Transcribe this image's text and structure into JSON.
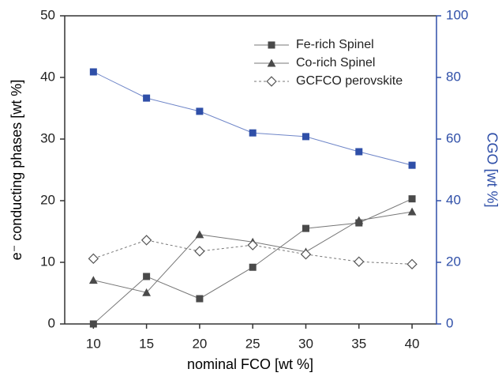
{
  "chart_data": {
    "type": "line",
    "x_label": "nominal FCO [wt %]",
    "y_label": "e⁻ conducting phases [wt %]",
    "y2_label": "CGO [wt %]",
    "y2_color": "#2f4fa8",
    "x": [
      10,
      15,
      20,
      25,
      30,
      35,
      40
    ],
    "xlim": [
      7.3,
      42.3
    ],
    "xticks": [
      10,
      15,
      20,
      25,
      30,
      35,
      40
    ],
    "ylim": [
      0,
      50
    ],
    "yticks": [
      0,
      10,
      20,
      30,
      40,
      50
    ],
    "y2lim": [
      0,
      100
    ],
    "y2ticks": [
      0,
      20,
      40,
      60,
      80,
      100
    ],
    "legend": "upper right",
    "series": [
      {
        "name": "Fe-rich Spinel",
        "color": "#4a4a4a",
        "line_color": "#777777",
        "marker": "square",
        "values": [
          0,
          7.7,
          4.1,
          9.2,
          15.5,
          16.4,
          20.3
        ]
      },
      {
        "name": "Co-rich Spinel",
        "color": "#4a4a4a",
        "line_color": "#777777",
        "marker": "triangle",
        "values": [
          7.1,
          5.1,
          14.5,
          13.3,
          11.7,
          16.8,
          18.2
        ]
      },
      {
        "name": "GCFCO perovskite",
        "color": "#555555",
        "line_color": "#777777",
        "marker": "diamond",
        "dashed": true,
        "values": [
          10.6,
          13.6,
          11.8,
          12.8,
          11.3,
          10.1,
          9.7
        ]
      },
      {
        "color": "#2f4fa8",
        "line_color": "#6f86c8",
        "marker": "square",
        "axis": "y2",
        "values": [
          81.8,
          73.3,
          69,
          62,
          60.8,
          55.9,
          51.5
        ]
      }
    ]
  }
}
